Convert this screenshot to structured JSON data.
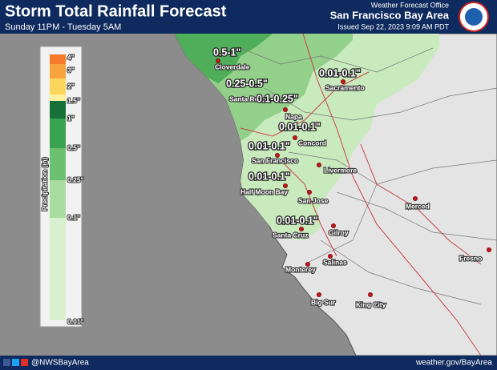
{
  "header": {
    "title": "Storm Total Rainfall Forecast",
    "subtitle": "Sunday 11PM - Tuesday 5AM",
    "office": "Weather Forecast Office",
    "region": "San Francisco Bay Area",
    "issued": "Issued Sep 22, 2023 9:09 AM PDT"
  },
  "legend": {
    "title": "Precipitation (in)",
    "labels": [
      "4\"",
      "3\"",
      "2\"",
      "1.5\"",
      "1\"",
      "0.5\"",
      "0.25\"",
      "0.1\"",
      "0.01\""
    ]
  },
  "map": {
    "amounts": [
      "0.5-1\"",
      "0.25-0.5\"",
      "0.1-0.25\"",
      "0.01-0.1\"",
      "0.01-0.1\"",
      "0.01-0.1\"",
      "0.01-0.1\"",
      "0.01-0.1\""
    ],
    "cities": [
      "Cloverdale",
      "Santa Rosa",
      "Napa",
      "Sacramento",
      "Concord",
      "San Francisco",
      "Livermore",
      "Half Moon Bay",
      "San Jose",
      "Merced",
      "Gilroy",
      "Santa Cruz",
      "Salinas",
      "Monterey",
      "Fresno",
      "Big Sur",
      "King City"
    ]
  },
  "footer": {
    "social": "@NWSBayArea",
    "website": "weather.gov/BayArea"
  }
}
